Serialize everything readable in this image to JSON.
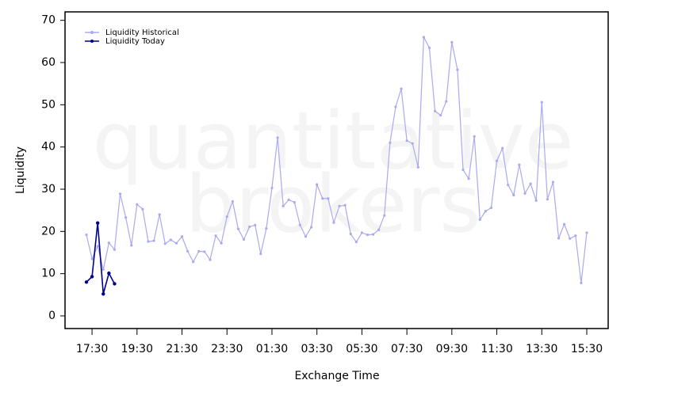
{
  "chart_data": {
    "type": "line",
    "watermark": [
      "quantitative",
      "brokers"
    ],
    "xlabel": "Exchange Time",
    "ylabel": "Liquidity",
    "categories": [
      null,
      "17:30",
      null,
      null,
      null,
      null,
      null,
      null,
      null,
      "19:30",
      null,
      null,
      null,
      null,
      null,
      null,
      null,
      "21:30",
      null,
      null,
      null,
      null,
      null,
      null,
      null,
      "23:30",
      null,
      null,
      null,
      null,
      null,
      null,
      null,
      "01:30",
      null,
      null,
      null,
      null,
      null,
      null,
      null,
      "03:30",
      null,
      null,
      null,
      null,
      null,
      null,
      null,
      "05:30",
      null,
      null,
      null,
      null,
      null,
      null,
      null,
      "07:30",
      null,
      null,
      null,
      null,
      null,
      null,
      null,
      "09:30",
      null,
      null,
      null,
      null,
      null,
      null,
      null,
      "11:30",
      null,
      null,
      null,
      null,
      null,
      null,
      null,
      "13:30",
      null,
      null,
      null,
      null,
      null,
      null,
      null,
      "15:30"
    ],
    "series": [
      {
        "name": "Liquidity Historical",
        "color": "#aaaaf0",
        "values": [
          19.2,
          13.5,
          16.5,
          11,
          17.3,
          15.7,
          28.9,
          23.3,
          16.7,
          26.4,
          25.3,
          17.6,
          17.8,
          24.0,
          17.1,
          18.0,
          17.2,
          18.8,
          15.3,
          12.8,
          15.3,
          15.2,
          13.3,
          19.0,
          17.2,
          23.5,
          27.1,
          20.6,
          18.1,
          21.1,
          21.5,
          14.7,
          20.7,
          30.3,
          42.2,
          26.0,
          27.5,
          26.9,
          21.5,
          18.8,
          21.0,
          31.1,
          27.8,
          27.8,
          22.1,
          26.0,
          26.2,
          19.4,
          17.5,
          19.7,
          19.2,
          19.3,
          20.4,
          23.8,
          41.0,
          49.5,
          53.8,
          41.5,
          40.8,
          35.2,
          66.0,
          63.5,
          48.5,
          47.5,
          50.8,
          64.8,
          58.3,
          34.6,
          32.5,
          42.5,
          22.8,
          24.8,
          25.6,
          36.7,
          39.7,
          31.0,
          28.6,
          35.8,
          29.0,
          31.3,
          27.3,
          50.6,
          27.6,
          31.7,
          18.4,
          21.7,
          18.3,
          19.0,
          7.8,
          19.7
        ]
      },
      {
        "name": "Liquidity Today",
        "color": "#00008b",
        "values": [
          8.0,
          9.3,
          22.0,
          5.2,
          10.1,
          7.6,
          null,
          null,
          null,
          null,
          null,
          null,
          null,
          null,
          null,
          null,
          null,
          null,
          null,
          null,
          null,
          null,
          null,
          null,
          null,
          null,
          null,
          null,
          null,
          null,
          null,
          null,
          null,
          null,
          null,
          null,
          null,
          null,
          null,
          null,
          null,
          null,
          null,
          null,
          null,
          null,
          null,
          null,
          null,
          null,
          null,
          null,
          null,
          null,
          null,
          null,
          null,
          null,
          null,
          null,
          null,
          null,
          null,
          null,
          null,
          null,
          null,
          null,
          null,
          null,
          null,
          null,
          null,
          null,
          null,
          null,
          null,
          null,
          null,
          null,
          null,
          null,
          null,
          null,
          null,
          null,
          null,
          null,
          null,
          null
        ]
      }
    ],
    "ylim": [
      -3,
      72
    ],
    "yticks": [
      0,
      10,
      20,
      30,
      40,
      50,
      60,
      70
    ],
    "grid": false,
    "legend": "top-left"
  }
}
